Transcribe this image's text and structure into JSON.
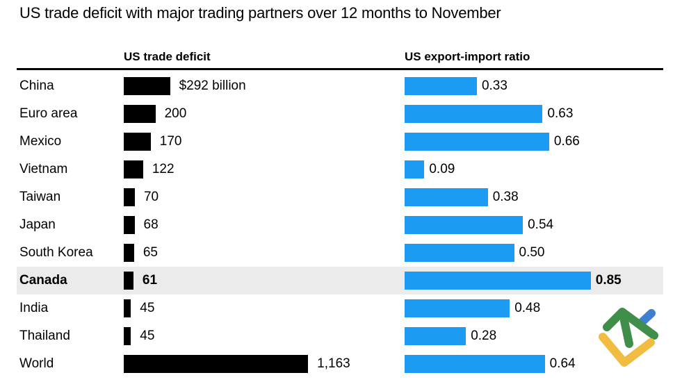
{
  "title": "US trade deficit with major trading partners over 12 months to November",
  "columns": {
    "deficit": "US trade deficit",
    "ratio": "US export-import ratio"
  },
  "chart_data": {
    "type": "bar",
    "orientation": "horizontal",
    "categories": [
      "China",
      "Euro area",
      "Mexico",
      "Vietnam",
      "Taiwan",
      "Japan",
      "South Korea",
      "Canada",
      "India",
      "Thailand",
      "World"
    ],
    "series": [
      {
        "name": "US trade deficit ($ billion)",
        "values": [
          292,
          200,
          170,
          122,
          70,
          68,
          65,
          61,
          45,
          45,
          1163
        ],
        "labels": [
          "$292 billion",
          "200",
          "170",
          "122",
          "70",
          "68",
          "65",
          "61",
          "45",
          "45",
          "1,163"
        ]
      },
      {
        "name": "US export-import ratio",
        "values": [
          0.33,
          0.63,
          0.66,
          0.09,
          0.38,
          0.54,
          0.5,
          0.85,
          0.48,
          0.28,
          0.64
        ],
        "labels": [
          "0.33",
          "0.63",
          "0.66",
          "0.09",
          "0.38",
          "0.54",
          "0.50",
          "0.85",
          "0.48",
          "0.28",
          "0.64"
        ]
      }
    ],
    "highlighted_category": "Canada",
    "value_labels_shown": true,
    "grid": false,
    "legend_position": "column-headers",
    "colors": {
      "deficit_bar": "#000000",
      "ratio_bar": "#1c9bf2",
      "highlight": "#ebebeb",
      "text": "#000000"
    }
  },
  "logo": {
    "name": "liteforex-logo",
    "colors": {
      "green": "#3f8f4a",
      "yellow": "#f0bd41",
      "blue": "#3f7fd2"
    }
  }
}
